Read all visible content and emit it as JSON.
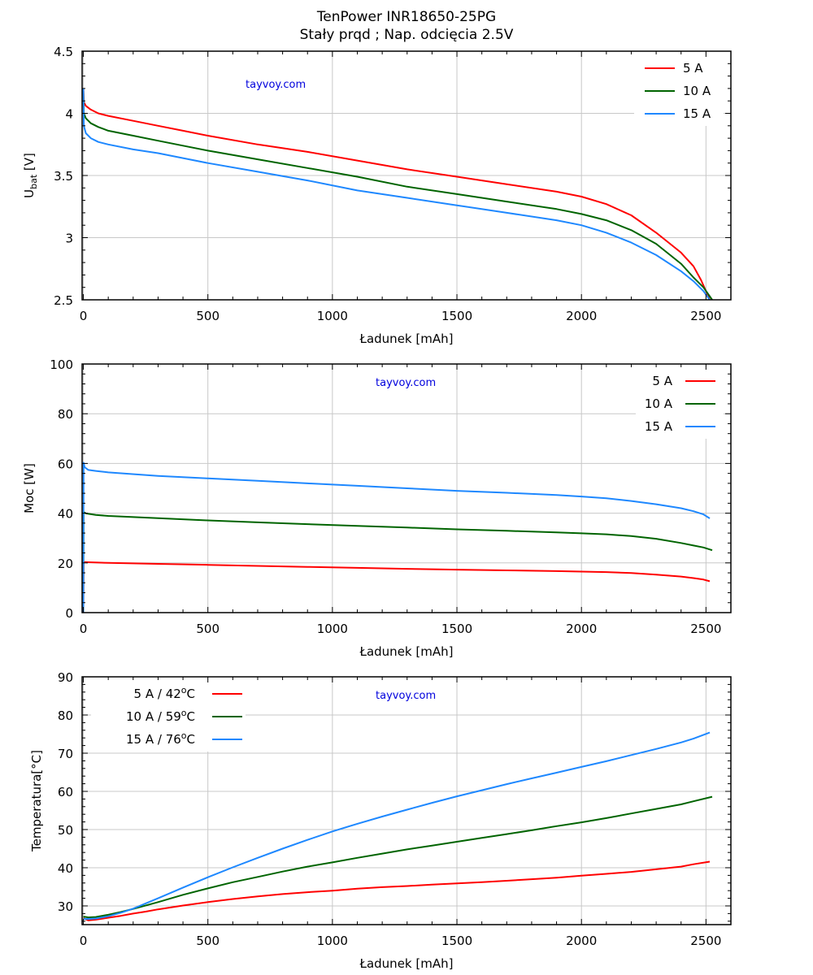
{
  "chart_data": [
    {
      "type": "line",
      "id": "voltage",
      "title": "TenPower INR18650-25PG",
      "subtitle": "Stały prqd ; Nap. odcięcia 2.5V",
      "xlabel": "Ładunek [mAh]",
      "ylabel": "U",
      "ylabel_sub": "bat",
      "ylabel_suffix": " [V]",
      "xlim": [
        -5,
        2600
      ],
      "ylim": [
        2.5,
        4.5
      ],
      "xticks": [
        0,
        500,
        1000,
        1500,
        2000,
        2500
      ],
      "xtick_labels": [
        "0",
        "500",
        "1000",
        "1500",
        "2000",
        "2500"
      ],
      "yticks": [
        2.5,
        3,
        3.5,
        4,
        4.5
      ],
      "ytick_labels": [
        "2.5",
        "3",
        "3.5",
        "4",
        "4.5"
      ],
      "grid": true,
      "legend_position": "top-right",
      "legend_style": "line-then-label",
      "watermark": "tayvoy.com",
      "series": [
        {
          "name": "5 A",
          "color": "#ff0000",
          "x": [
            0,
            2,
            10,
            30,
            60,
            100,
            200,
            300,
            400,
            500,
            700,
            900,
            1100,
            1300,
            1500,
            1700,
            1900,
            2000,
            2100,
            2200,
            2300,
            2400,
            2450,
            2480,
            2500,
            2515
          ],
          "y": [
            4.2,
            4.09,
            4.06,
            4.03,
            4.0,
            3.98,
            3.94,
            3.9,
            3.86,
            3.82,
            3.75,
            3.69,
            3.62,
            3.55,
            3.49,
            3.43,
            3.37,
            3.33,
            3.27,
            3.18,
            3.04,
            2.88,
            2.77,
            2.66,
            2.57,
            2.5
          ]
        },
        {
          "name": "10 A",
          "color": "#006400",
          "x": [
            0,
            2,
            10,
            30,
            60,
            100,
            200,
            300,
            400,
            500,
            700,
            900,
            1100,
            1300,
            1500,
            1700,
            1900,
            2000,
            2100,
            2200,
            2300,
            2400,
            2450,
            2490,
            2525
          ],
          "y": [
            4.2,
            4.0,
            3.96,
            3.92,
            3.89,
            3.86,
            3.82,
            3.78,
            3.74,
            3.7,
            3.63,
            3.56,
            3.49,
            3.41,
            3.35,
            3.29,
            3.23,
            3.19,
            3.14,
            3.06,
            2.95,
            2.79,
            2.68,
            2.6,
            2.5
          ]
        },
        {
          "name": "15 A",
          "color": "#1e88ff",
          "x": [
            0,
            2,
            10,
            30,
            60,
            100,
            200,
            300,
            400,
            500,
            700,
            900,
            1100,
            1300,
            1500,
            1700,
            1900,
            2000,
            2100,
            2200,
            2300,
            2400,
            2450,
            2490,
            2515
          ],
          "y": [
            4.2,
            3.9,
            3.84,
            3.8,
            3.77,
            3.75,
            3.71,
            3.68,
            3.64,
            3.6,
            3.53,
            3.46,
            3.38,
            3.32,
            3.26,
            3.2,
            3.14,
            3.1,
            3.04,
            2.96,
            2.86,
            2.73,
            2.65,
            2.57,
            2.5
          ]
        }
      ]
    },
    {
      "type": "line",
      "id": "power",
      "xlabel": "Ładunek [mAh]",
      "ylabel": "Moc [W]",
      "xlim": [
        -5,
        2600
      ],
      "ylim": [
        0,
        100
      ],
      "xticks": [
        0,
        500,
        1000,
        1500,
        2000,
        2500
      ],
      "xtick_labels": [
        "0",
        "500",
        "1000",
        "1500",
        "2000",
        "2500"
      ],
      "yticks": [
        0,
        20,
        40,
        60,
        80,
        100
      ],
      "ytick_labels": [
        "0",
        "20",
        "40",
        "60",
        "80",
        "100"
      ],
      "grid": true,
      "legend_position": "top-right",
      "legend_style": "label-then-line",
      "watermark": "tayvoy.com",
      "series": [
        {
          "name": "5 A",
          "color": "#ff0000",
          "x": [
            0,
            1,
            10,
            100,
            300,
            500,
            700,
            900,
            1100,
            1300,
            1500,
            1700,
            1900,
            2000,
            2100,
            2200,
            2300,
            2400,
            2450,
            2490,
            2515
          ],
          "y": [
            0,
            20.3,
            20.3,
            20.0,
            19.6,
            19.2,
            18.8,
            18.4,
            18.0,
            17.6,
            17.3,
            17.0,
            16.7,
            16.5,
            16.3,
            15.9,
            15.3,
            14.5,
            13.9,
            13.3,
            12.6
          ]
        },
        {
          "name": "10 A",
          "color": "#006400",
          "x": [
            0,
            1,
            10,
            50,
            100,
            300,
            500,
            700,
            900,
            1100,
            1300,
            1500,
            1700,
            1900,
            2000,
            2100,
            2200,
            2300,
            2400,
            2450,
            2490,
            2525
          ],
          "y": [
            0,
            40.5,
            39.9,
            39.3,
            38.9,
            38.0,
            37.1,
            36.3,
            35.6,
            34.9,
            34.2,
            33.5,
            32.9,
            32.3,
            31.9,
            31.5,
            30.8,
            29.7,
            28.0,
            27.0,
            26.2,
            25.1
          ]
        },
        {
          "name": "15 A",
          "color": "#1e88ff",
          "x": [
            0,
            1,
            5,
            20,
            50,
            100,
            300,
            500,
            700,
            900,
            1100,
            1300,
            1500,
            1700,
            1900,
            2000,
            2100,
            2200,
            2300,
            2400,
            2450,
            2490,
            2515
          ],
          "y": [
            0,
            60.3,
            58.5,
            57.4,
            57.0,
            56.4,
            55.0,
            54.0,
            53.0,
            52.0,
            51.0,
            50.0,
            49.0,
            48.2,
            47.3,
            46.7,
            46.0,
            44.9,
            43.6,
            42.0,
            40.8,
            39.5,
            37.9
          ]
        }
      ]
    },
    {
      "type": "line",
      "id": "temperature",
      "xlabel": "Ładunek [mAh]",
      "ylabel": "Temperatura[°C]",
      "xlim": [
        -5,
        2600
      ],
      "ylim": [
        25.1,
        90
      ],
      "xticks": [
        0,
        500,
        1000,
        1500,
        2000,
        2500
      ],
      "xtick_labels": [
        "0",
        "500",
        "1000",
        "1500",
        "2000",
        "2500"
      ],
      "yticks": [
        30,
        40,
        50,
        60,
        70,
        80,
        90
      ],
      "ytick_labels": [
        "30",
        "40",
        "50",
        "60",
        "70",
        "80",
        "90"
      ],
      "grid": true,
      "legend_position": "top-left",
      "legend_style": "label-then-line",
      "watermark": "tayvoy.com",
      "series": [
        {
          "name": "5 A  / 42",
          "name_sup": "o",
          "name_suffix": "C",
          "color": "#ff0000",
          "x": [
            0,
            20,
            50,
            100,
            150,
            200,
            250,
            300,
            400,
            500,
            600,
            700,
            800,
            900,
            1000,
            1100,
            1200,
            1300,
            1400,
            1500,
            1600,
            1700,
            1800,
            1900,
            2000,
            2100,
            2200,
            2300,
            2400,
            2450,
            2515
          ],
          "y": [
            26.8,
            26.2,
            26.4,
            26.9,
            27.4,
            28.0,
            28.5,
            29.1,
            30.1,
            31.0,
            31.8,
            32.5,
            33.1,
            33.6,
            34.0,
            34.5,
            34.9,
            35.2,
            35.6,
            35.9,
            36.2,
            36.6,
            37.0,
            37.4,
            37.9,
            38.4,
            38.9,
            39.6,
            40.3,
            40.9,
            41.6
          ]
        },
        {
          "name": "10 A  / 59",
          "name_sup": "o",
          "name_suffix": "C",
          "color": "#006400",
          "x": [
            0,
            20,
            50,
            100,
            150,
            200,
            300,
            400,
            500,
            600,
            700,
            800,
            900,
            1000,
            1100,
            1200,
            1300,
            1400,
            1500,
            1600,
            1700,
            1800,
            1900,
            2000,
            2100,
            2200,
            2300,
            2400,
            2450,
            2525
          ],
          "y": [
            27.2,
            27.0,
            27.1,
            27.7,
            28.4,
            29.2,
            31.0,
            32.9,
            34.6,
            36.2,
            37.6,
            39.0,
            40.3,
            41.4,
            42.6,
            43.7,
            44.8,
            45.8,
            46.8,
            47.8,
            48.8,
            49.8,
            50.9,
            51.9,
            53.0,
            54.2,
            55.4,
            56.6,
            57.4,
            58.6
          ]
        },
        {
          "name": "15 A  / 76",
          "name_sup": "o",
          "name_suffix": "C",
          "color": "#1e88ff",
          "x": [
            0,
            20,
            50,
            100,
            150,
            200,
            300,
            400,
            500,
            600,
            700,
            800,
            900,
            1000,
            1100,
            1200,
            1300,
            1400,
            1500,
            1600,
            1700,
            1800,
            1900,
            2000,
            2100,
            2200,
            2300,
            2400,
            2450,
            2515
          ],
          "y": [
            26.6,
            26.6,
            26.7,
            27.3,
            28.2,
            29.3,
            32.0,
            34.8,
            37.5,
            40.1,
            42.6,
            45.0,
            47.3,
            49.5,
            51.5,
            53.4,
            55.2,
            57.0,
            58.7,
            60.3,
            61.9,
            63.4,
            64.9,
            66.4,
            67.9,
            69.5,
            71.1,
            72.8,
            73.8,
            75.4
          ]
        }
      ]
    }
  ]
}
